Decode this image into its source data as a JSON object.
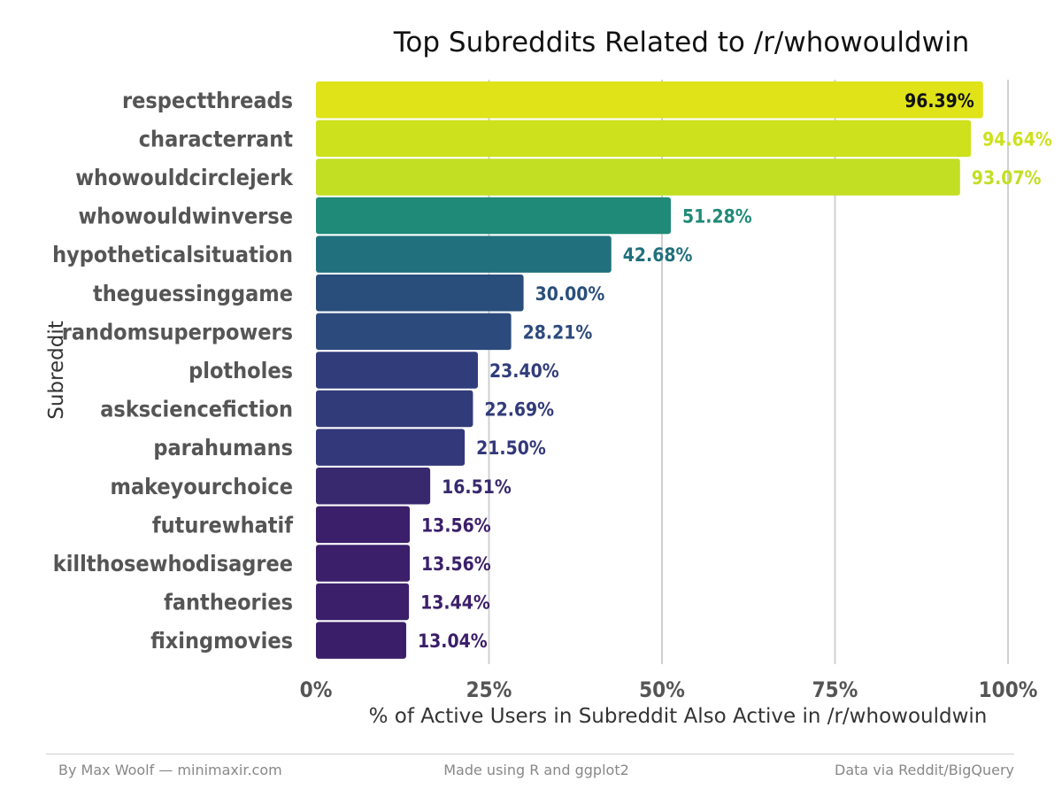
{
  "chart_data": {
    "type": "bar",
    "orientation": "horizontal",
    "title": "Top Subreddits Related to /r/whowouldwin",
    "xlabel": "% of Active Users in Subreddit Also Active in /r/whowouldwin",
    "ylabel": "Subreddit",
    "xlim": [
      0,
      100
    ],
    "x_ticks": [
      "0%",
      "25%",
      "50%",
      "75%",
      "100%"
    ],
    "grid": "vertical major gridlines",
    "categories": [
      "respectthreads",
      "characterrant",
      "whowouldcirclejerk",
      "whowouldwinverse",
      "hypotheticalsituation",
      "theguessinggame",
      "randomsuperpowers",
      "plotholes",
      "asksciencefiction",
      "parahumans",
      "makeyourchoice",
      "futurewhatif",
      "killthosewhodisagree",
      "fantheories",
      "fixingmovies"
    ],
    "values": [
      96.39,
      94.64,
      93.07,
      51.28,
      42.68,
      30.0,
      28.21,
      23.4,
      22.69,
      21.5,
      16.51,
      13.56,
      13.56,
      13.44,
      13.04
    ],
    "labels": [
      "96.39%",
      "94.64%",
      "93.07%",
      "51.28%",
      "42.68%",
      "30.00%",
      "28.21%",
      "23.40%",
      "22.69%",
      "21.50%",
      "16.51%",
      "13.56%",
      "13.56%",
      "13.44%",
      "13.04%"
    ],
    "colors": [
      "#dfe318",
      "#cde11d",
      "#c2df23",
      "#1f8a78",
      "#21707d",
      "#2a4e7b",
      "#2d4a7d",
      "#313d7b",
      "#323b7a",
      "#33387a",
      "#38296e",
      "#3b1f6a",
      "#3b1f6a",
      "#3b1f6a",
      "#3b1e69"
    ],
    "label_colors": [
      "#111111",
      "#cde11d",
      "#c2df23",
      "#1f8a78",
      "#21707d",
      "#2a4e7b",
      "#2d4a7d",
      "#313d7b",
      "#323b7a",
      "#33387a",
      "#38296e",
      "#3b1f6a",
      "#3b1f6a",
      "#3b1f6a",
      "#3b1e69"
    ],
    "colormap": "viridis"
  },
  "footer": {
    "left": "By Max Woolf — minimaxir.com",
    "center": "Made using R and ggplot2",
    "right": "Data via Reddit/BigQuery"
  }
}
